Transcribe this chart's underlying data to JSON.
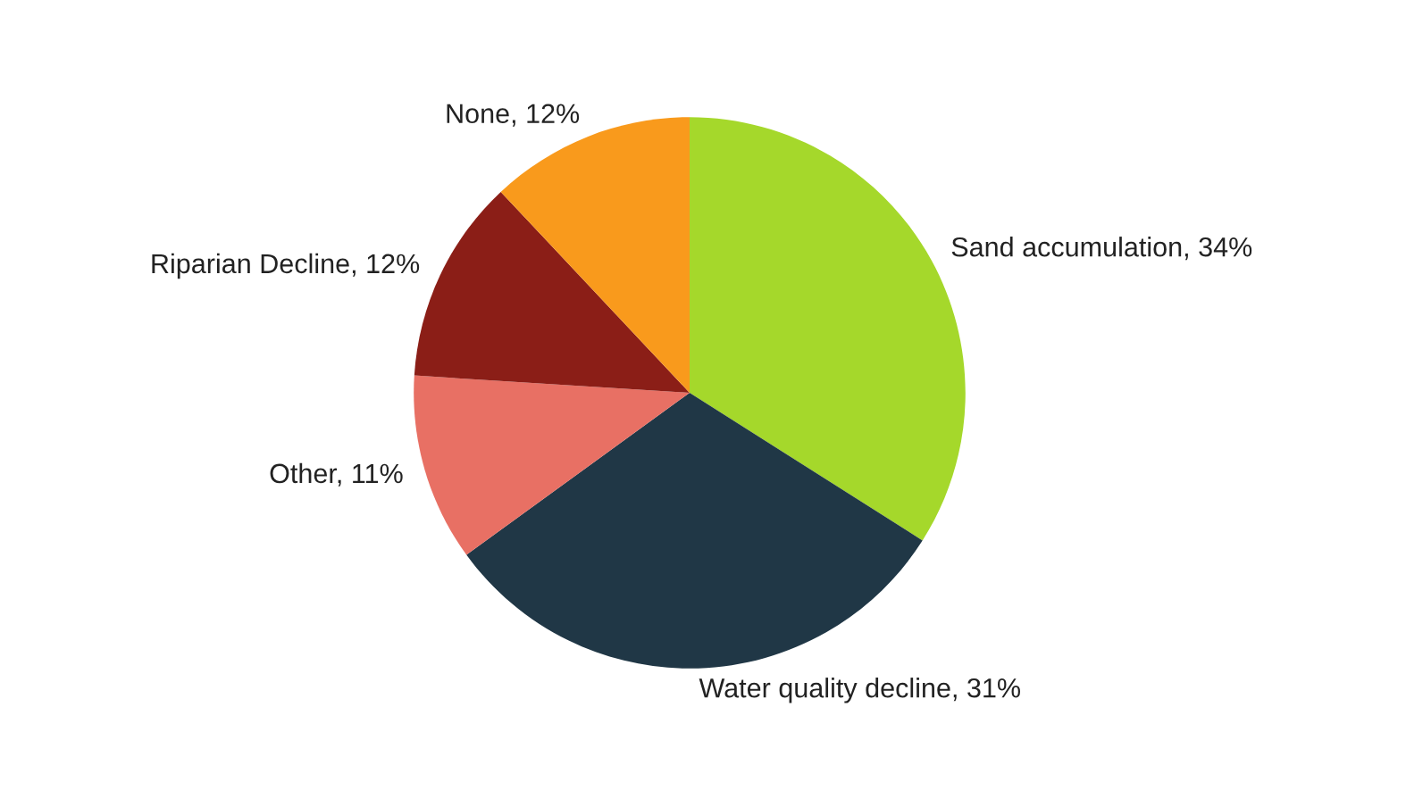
{
  "chart_data": {
    "type": "pie",
    "categories": [
      "Sand accumulation",
      "Water quality decline",
      "Other",
      "Riparian Decline",
      "None"
    ],
    "values": [
      34,
      31,
      11,
      12,
      12
    ],
    "value_labels": [
      "34%",
      "31%",
      "11%",
      "12%",
      "12%"
    ],
    "colors": [
      "#a5d82b",
      "#203746",
      "#e87064",
      "#8b1e17",
      "#f99a1c"
    ],
    "legend": false
  }
}
